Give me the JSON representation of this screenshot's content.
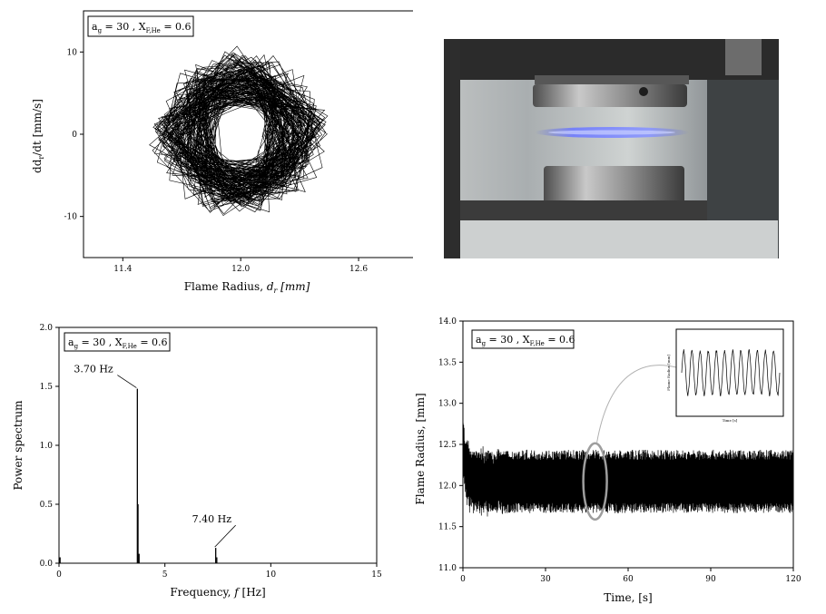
{
  "chart_data": [
    {
      "type": "scatter",
      "ylabel_parts": [
        "dd",
        "r",
        "/dt [mm/s]"
      ],
      "xlabel_parts": [
        "Flame Radius, ",
        "d",
        "r",
        " [mm]"
      ],
      "legend_parts": [
        "a",
        "g",
        " = 30 ,  X",
        "F,He",
        " = 0.6"
      ],
      "xlim": [
        11.2,
        12.9
      ],
      "ylim": [
        -15,
        15
      ],
      "x_ticks": [
        11.4,
        12.0,
        12.6
      ],
      "x_tick_labels": [
        "11.4",
        "12.0",
        "12.6"
      ],
      "y_ticks": [
        -10,
        0,
        10
      ],
      "y_tick_labels": [
        "-10",
        "0",
        "10"
      ],
      "description_style": "phase-portrait",
      "loop_center": [
        12.0,
        0
      ],
      "loop_radius_x": [
        0.12,
        0.45
      ],
      "loop_radius_y": [
        3.5,
        10.5
      ]
    },
    {
      "type": "line",
      "ylabel": "Power spectrum",
      "xlabel_parts": [
        "Frequency, ",
        "f",
        " [Hz]"
      ],
      "legend_parts": [
        "a",
        "g",
        " = 30 ,  X",
        "F,He",
        " = 0.6"
      ],
      "xlim": [
        0,
        15
      ],
      "ylim": [
        0,
        2.0
      ],
      "x_ticks": [
        0,
        5,
        10,
        15
      ],
      "x_tick_labels": [
        "0",
        "5",
        "10",
        "15"
      ],
      "y_ticks": [
        0,
        0.5,
        1.0,
        1.5,
        2.0
      ],
      "y_tick_labels": [
        "0.0",
        "0.5",
        "1.0",
        "1.5",
        "2.0"
      ],
      "peaks": [
        {
          "x": 0.05,
          "y": 0.05
        },
        {
          "x": 3.7,
          "y": 1.48
        },
        {
          "x": 3.73,
          "y": 0.5
        },
        {
          "x": 3.78,
          "y": 0.08
        },
        {
          "x": 7.4,
          "y": 0.13
        },
        {
          "x": 7.45,
          "y": 0.05
        }
      ],
      "annotations": [
        {
          "text": "3.70 Hz",
          "x": 3.7,
          "y": 1.48
        },
        {
          "text": "7.40 Hz",
          "x": 7.4,
          "y": 0.13
        }
      ]
    },
    {
      "type": "line",
      "ylabel": "Flame Radius, [mm]",
      "xlabel": "Time, [s]",
      "legend_parts": [
        "a",
        "g",
        " = 30 ,  X",
        "F,He",
        " = 0.6"
      ],
      "xlim": [
        0,
        120
      ],
      "ylim": [
        11.0,
        14.0
      ],
      "x_ticks": [
        0,
        30,
        60,
        90,
        120
      ],
      "x_tick_labels": [
        "0",
        "30",
        "60",
        "90",
        "120"
      ],
      "y_ticks": [
        11.0,
        11.5,
        12.0,
        12.5,
        13.0,
        13.5,
        14.0
      ],
      "y_tick_labels": [
        "11.0",
        "11.5",
        "12.0",
        "12.5",
        "13.0",
        "13.5",
        "14.0"
      ],
      "mean": 12.05,
      "oscillation_amplitude": 0.35,
      "initial_value": 12.75,
      "highlight_ellipse_x": 48,
      "inset": {
        "ylabel": "Flame Radius [mm]",
        "xlabel": "Time [s]",
        "cycles": 12
      }
    }
  ]
}
